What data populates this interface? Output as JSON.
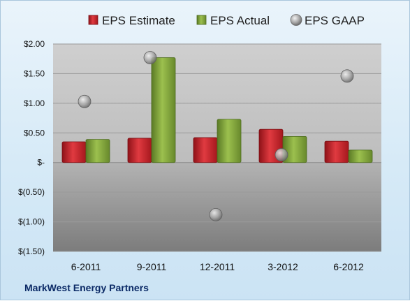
{
  "chart_data": {
    "type": "bar",
    "categories": [
      "6-2011",
      "9-2011",
      "12-2011",
      "3-2012",
      "6-2012"
    ],
    "series": [
      {
        "name": "EPS Estimate",
        "kind": "bar",
        "color": "#c0262d",
        "values": [
          0.35,
          0.41,
          0.42,
          0.56,
          0.36
        ]
      },
      {
        "name": "EPS Actual",
        "kind": "bar",
        "color": "#7fa03c",
        "values": [
          0.39,
          1.77,
          0.73,
          0.44,
          0.21
        ]
      },
      {
        "name": "EPS GAAP",
        "kind": "scatter",
        "color": "#a9a9a9",
        "values": [
          1.03,
          1.77,
          -0.88,
          0.13,
          1.46
        ]
      }
    ],
    "y_ticks": [
      {
        "value": 2.0,
        "label": "$2.00"
      },
      {
        "value": 1.5,
        "label": "$1.50"
      },
      {
        "value": 1.0,
        "label": "$1.00"
      },
      {
        "value": 0.5,
        "label": "$0.50"
      },
      {
        "value": 0.0,
        "label": "$-"
      },
      {
        "value": -0.5,
        "label": "$(0.50)"
      },
      {
        "value": -1.0,
        "label": "$(1.00)"
      },
      {
        "value": -1.5,
        "label": "$(1.50)"
      }
    ],
    "ylim": [
      -1.5,
      2.0
    ],
    "grid": true,
    "legend_position": "top",
    "footer": "MarkWest Energy Partners"
  }
}
